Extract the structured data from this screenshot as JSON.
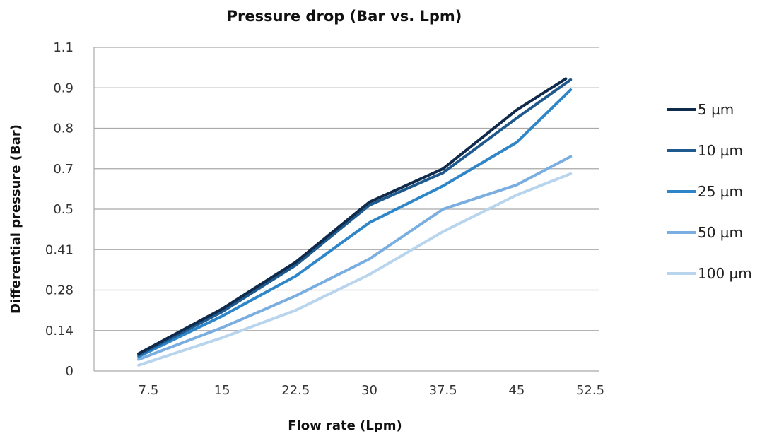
{
  "chart_data": {
    "type": "line",
    "title": "Pressure drop (Bar vs. Lpm)",
    "xlabel": "Flow rate (Lpm)",
    "ylabel": "Differential pressure (Bar)",
    "x_ticks": [
      "7.5",
      "15",
      "22.5",
      "30",
      "37.5",
      "45",
      "52.5"
    ],
    "y_ticks": [
      "0",
      "0.14",
      "0.28",
      "0.41",
      "0.5",
      "0.7",
      "0.8",
      "0.9",
      "1.1"
    ],
    "grid": true,
    "legend_position": "right",
    "series": [
      {
        "name": "5 µm",
        "color": "#0f2a4a",
        "points": [
          [
            6.5,
            0.06
          ],
          [
            15,
            0.215
          ],
          [
            22.5,
            0.37
          ],
          [
            30,
            0.535
          ],
          [
            37.5,
            0.7
          ],
          [
            45,
            0.845
          ],
          [
            50,
            0.945
          ]
        ]
      },
      {
        "name": "10 µm",
        "color": "#1f5a8e",
        "points": [
          [
            6.5,
            0.055
          ],
          [
            15,
            0.205
          ],
          [
            22.5,
            0.36
          ],
          [
            30,
            0.52
          ],
          [
            37.5,
            0.68
          ],
          [
            45,
            0.825
          ],
          [
            50.5,
            0.94
          ]
        ]
      },
      {
        "name": "25 µm",
        "color": "#2e86c8",
        "points": [
          [
            6.5,
            0.05
          ],
          [
            15,
            0.19
          ],
          [
            22.5,
            0.325
          ],
          [
            30,
            0.47
          ],
          [
            37.5,
            0.615
          ],
          [
            45,
            0.765
          ],
          [
            50.5,
            0.895
          ]
        ]
      },
      {
        "name": "50 µm",
        "color": "#7aaee0",
        "points": [
          [
            6.5,
            0.04
          ],
          [
            15,
            0.15
          ],
          [
            22.5,
            0.26
          ],
          [
            30,
            0.38
          ],
          [
            37.5,
            0.5
          ],
          [
            45,
            0.62
          ],
          [
            50.5,
            0.73
          ]
        ]
      },
      {
        "name": "100 µm",
        "color": "#b9d5ee",
        "points": [
          [
            6.5,
            0.02
          ],
          [
            15,
            0.115
          ],
          [
            22.5,
            0.21
          ],
          [
            30,
            0.33
          ],
          [
            37.5,
            0.45
          ],
          [
            45,
            0.57
          ],
          [
            50.5,
            0.675
          ]
        ]
      }
    ]
  }
}
